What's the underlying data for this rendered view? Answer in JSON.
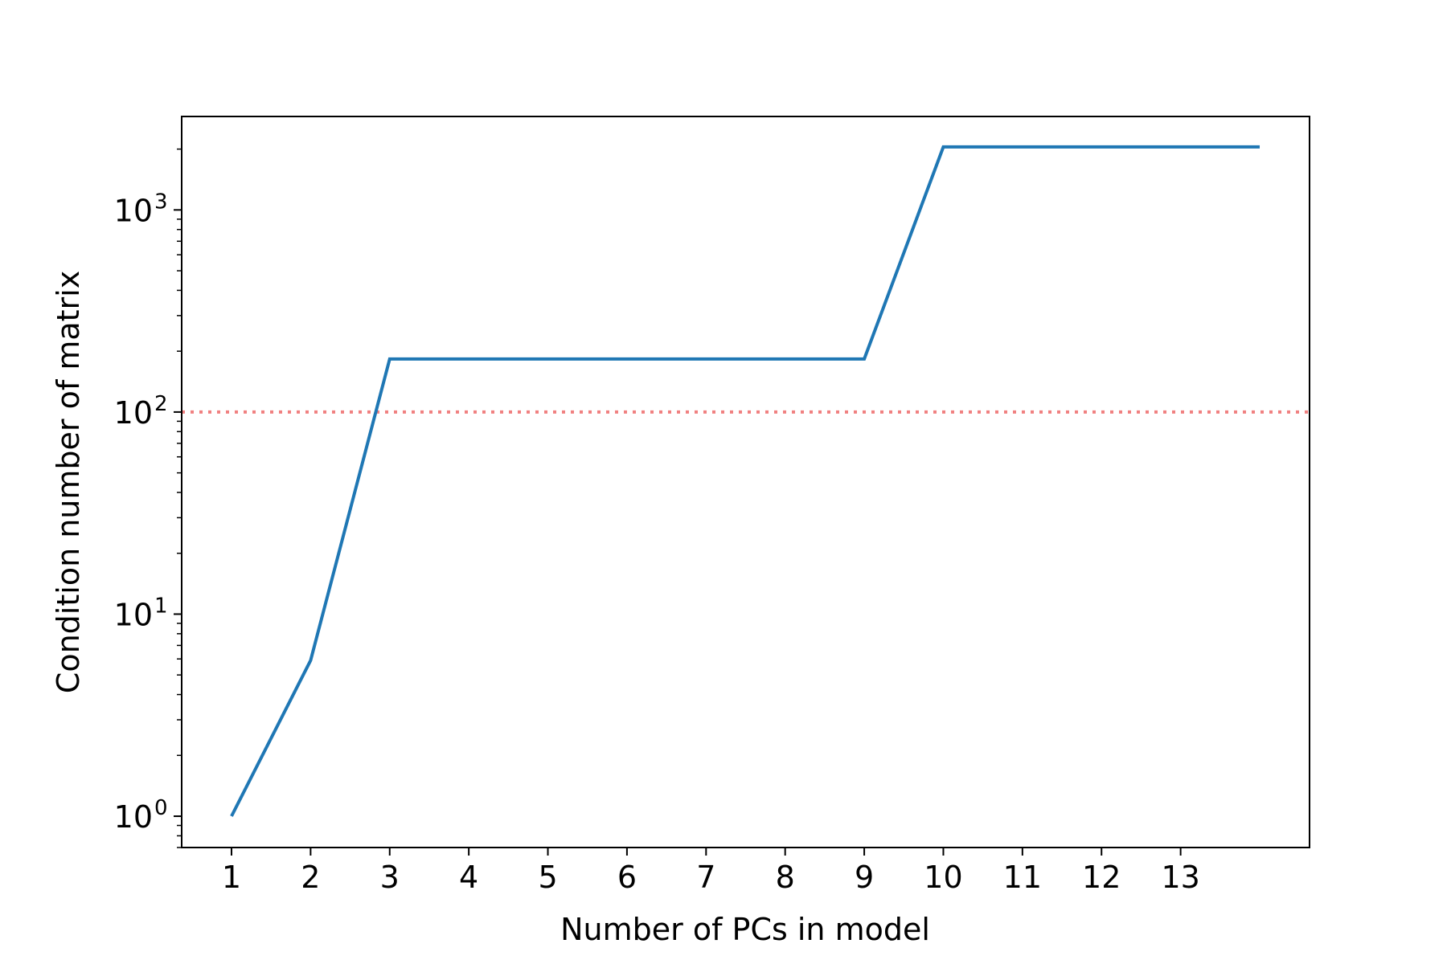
{
  "chart_data": {
    "type": "line",
    "xlabel": "Number of PCs in model",
    "ylabel": "Condition number of matrix",
    "x_ticks": [
      1,
      2,
      3,
      4,
      5,
      6,
      7,
      8,
      9,
      10,
      11,
      12,
      13
    ],
    "x_tick_labels": [
      "1",
      "2",
      "3",
      "4",
      "5",
      "6",
      "7",
      "8",
      "9",
      "10",
      "11",
      "12",
      "13"
    ],
    "y_scale": "log",
    "y_ticks": [
      1,
      10,
      100,
      1000
    ],
    "y_tick_labels": [
      {
        "base": "10",
        "exp": "0"
      },
      {
        "base": "10",
        "exp": "1"
      },
      {
        "base": "10",
        "exp": "2"
      },
      {
        "base": "10",
        "exp": "3"
      }
    ],
    "xlim": [
      0.37,
      14.63
    ],
    "ylim": [
      0.7,
      2900
    ],
    "series": [
      {
        "color": "#1f77b4",
        "x": [
          1,
          2,
          3,
          4,
          5,
          6,
          7,
          8,
          9,
          10,
          11,
          12,
          13,
          14
        ],
        "y": [
          1,
          5.9,
          183,
          183,
          183,
          183,
          183,
          183,
          183,
          2050,
          2050,
          2050,
          2050,
          2050
        ]
      }
    ],
    "reference_line": {
      "y": 100,
      "color": "#f08080",
      "style": "dotted"
    },
    "grid": false
  }
}
